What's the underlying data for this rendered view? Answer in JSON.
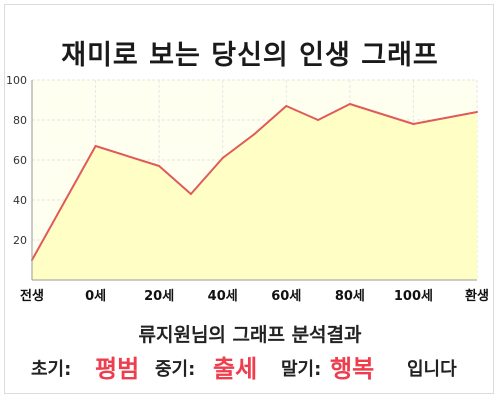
{
  "title": "재미로 보는 당신의 인생 그래프",
  "chart_data": {
    "type": "area",
    "title": "재미로 보는 당신의 인생 그래프",
    "x": [
      -20,
      0,
      20,
      30,
      40,
      50,
      60,
      70,
      80,
      90,
      100,
      120
    ],
    "y": [
      10,
      67,
      57,
      43,
      61,
      73,
      87,
      80,
      88,
      83,
      78,
      84
    ],
    "xlim": [
      -20,
      120
    ],
    "ylim": [
      0,
      100
    ],
    "x_ticks": [
      {
        "value": -20,
        "label": "전생"
      },
      {
        "value": 0,
        "label": "0세"
      },
      {
        "value": 20,
        "label": "20세"
      },
      {
        "value": 40,
        "label": "40세"
      },
      {
        "value": 60,
        "label": "60세"
      },
      {
        "value": 80,
        "label": "80세"
      },
      {
        "value": 100,
        "label": "100세"
      },
      {
        "value": 120,
        "label": "환생"
      }
    ],
    "y_ticks": [
      20,
      40,
      60,
      80,
      100
    ],
    "grid": true,
    "line_color": "#e05a5a",
    "fill_color": "#ffffc0",
    "plot_background": "#fffff0"
  },
  "result": {
    "heading": "류지원님의 그래프 분석결과",
    "early_label": "초기:",
    "early_value": "평범",
    "mid_label": "중기:",
    "mid_value": "출세",
    "late_label": "말기:",
    "late_value": "행복",
    "suffix": "입니다"
  }
}
